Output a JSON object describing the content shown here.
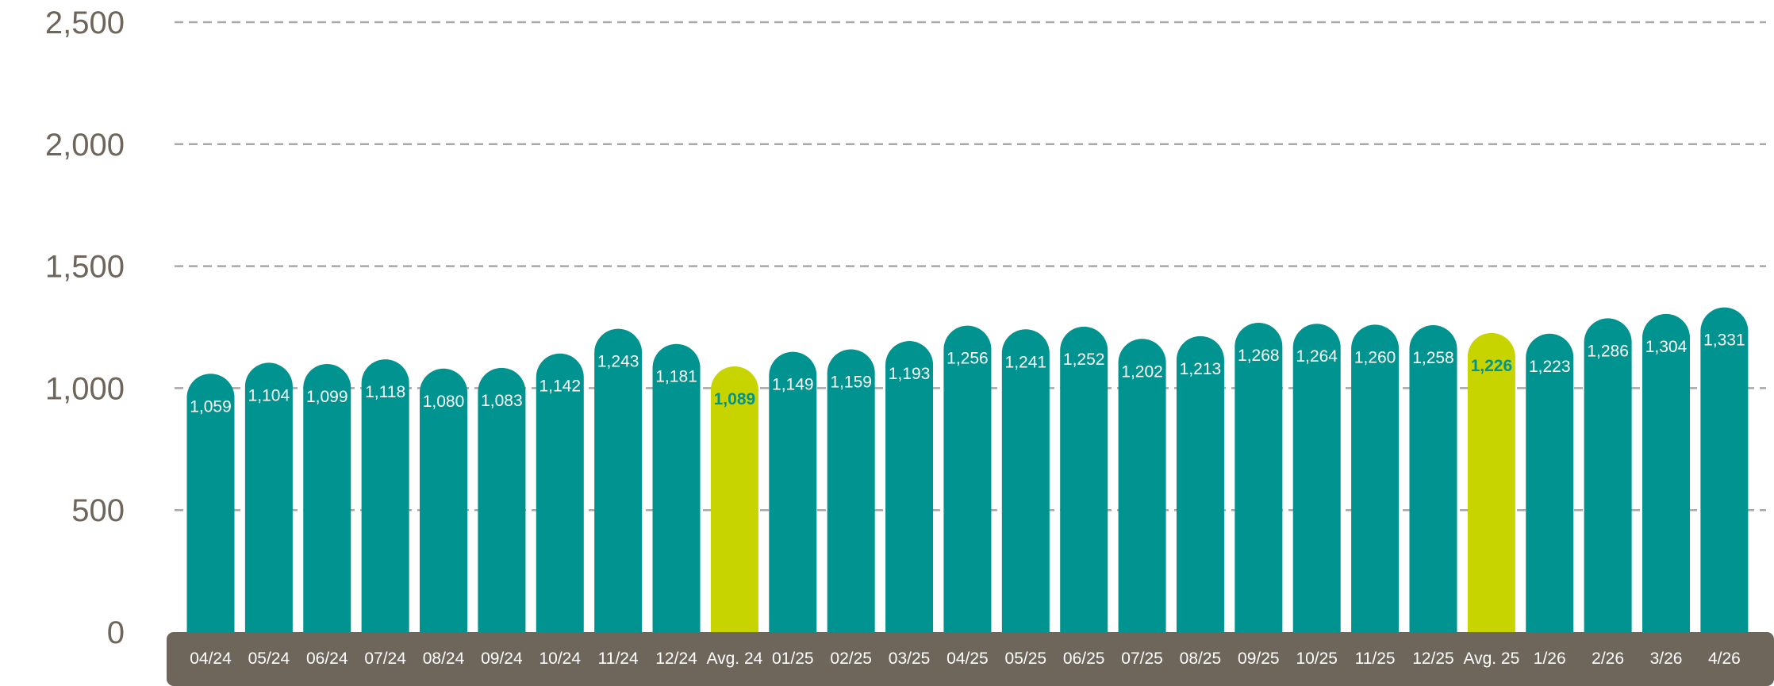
{
  "chart_data": {
    "type": "bar",
    "categories": [
      "04/24",
      "05/24",
      "06/24",
      "07/24",
      "08/24",
      "09/24",
      "10/24",
      "11/24",
      "12/24",
      "Avg. 24",
      "01/25",
      "02/25",
      "03/25",
      "04/25",
      "05/25",
      "06/25",
      "07/25",
      "08/25",
      "09/25",
      "10/25",
      "11/25",
      "12/25",
      "Avg. 25",
      "1/26",
      "2/26",
      "3/26",
      "4/26"
    ],
    "values": [
      1059,
      1104,
      1099,
      1118,
      1080,
      1083,
      1142,
      1243,
      1181,
      1089,
      1149,
      1159,
      1193,
      1256,
      1241,
      1252,
      1202,
      1213,
      1268,
      1264,
      1260,
      1258,
      1226,
      1223,
      1286,
      1304,
      1331
    ],
    "value_labels": [
      "1,059",
      "1,104",
      "1,099",
      "1,118",
      "1,080",
      "1,083",
      "1,142",
      "1,243",
      "1,181",
      "1,089",
      "1,149",
      "1,159",
      "1,193",
      "1,256",
      "1,241",
      "1,252",
      "1,202",
      "1,213",
      "1,268",
      "1,264",
      "1,260",
      "1,258",
      "1,226",
      "1,223",
      "1,286",
      "1,304",
      "1,331"
    ],
    "highlighted_categories": [
      "Avg. 24",
      "Avg. 25"
    ],
    "yticks": [
      0,
      500,
      1000,
      1500,
      2000,
      2500
    ],
    "ytick_labels": [
      "0",
      "500",
      "1,000",
      "1,500",
      "2,000",
      "2,500"
    ],
    "ylim": [
      0,
      2500
    ],
    "grid": "horizontal dashed",
    "title": "",
    "xlabel": "",
    "ylabel": "",
    "colors": {
      "bar": "#00938f",
      "highlight_bar": "#c8d400",
      "category_band": "#6e655b",
      "grid": "#a8a8a8",
      "tick_text": "#6e655b",
      "value_text": "#ffffff",
      "highlight_value_text": "#00938f"
    }
  }
}
